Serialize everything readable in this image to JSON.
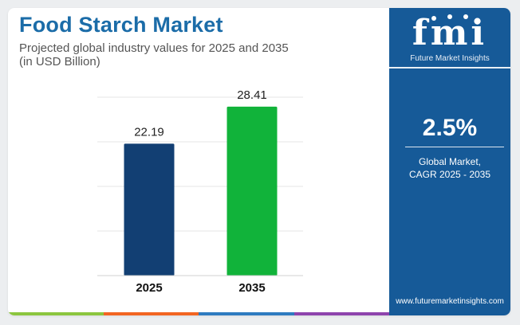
{
  "header": {
    "title": "Food Starch Market",
    "subtitle_line1": "Projected global industry values for 2025 and 2035",
    "subtitle_line2": "(in USD Billion)"
  },
  "chart_data": {
    "type": "bar",
    "categories": [
      "2025",
      "2035"
    ],
    "values": [
      22.19,
      28.41
    ],
    "value_labels": [
      "22.19",
      "28.41"
    ],
    "bar_colors": [
      "#123f73",
      "#11b33a"
    ],
    "ylim": [
      0,
      30
    ],
    "grid": true
  },
  "sidebar": {
    "logo_text": "fmi",
    "logo_subtext": "Future Market Insights",
    "cagr_value": "2.5%",
    "cagr_label_line1": "Global Market,",
    "cagr_label_line2": "CAGR 2025 - 2035",
    "website": "www.futuremarketinsights.com",
    "background_color": "#165a98"
  },
  "footer_stripe_colors": [
    "#8cc63f",
    "#f26522",
    "#2e7bc0",
    "#8e44ad"
  ]
}
